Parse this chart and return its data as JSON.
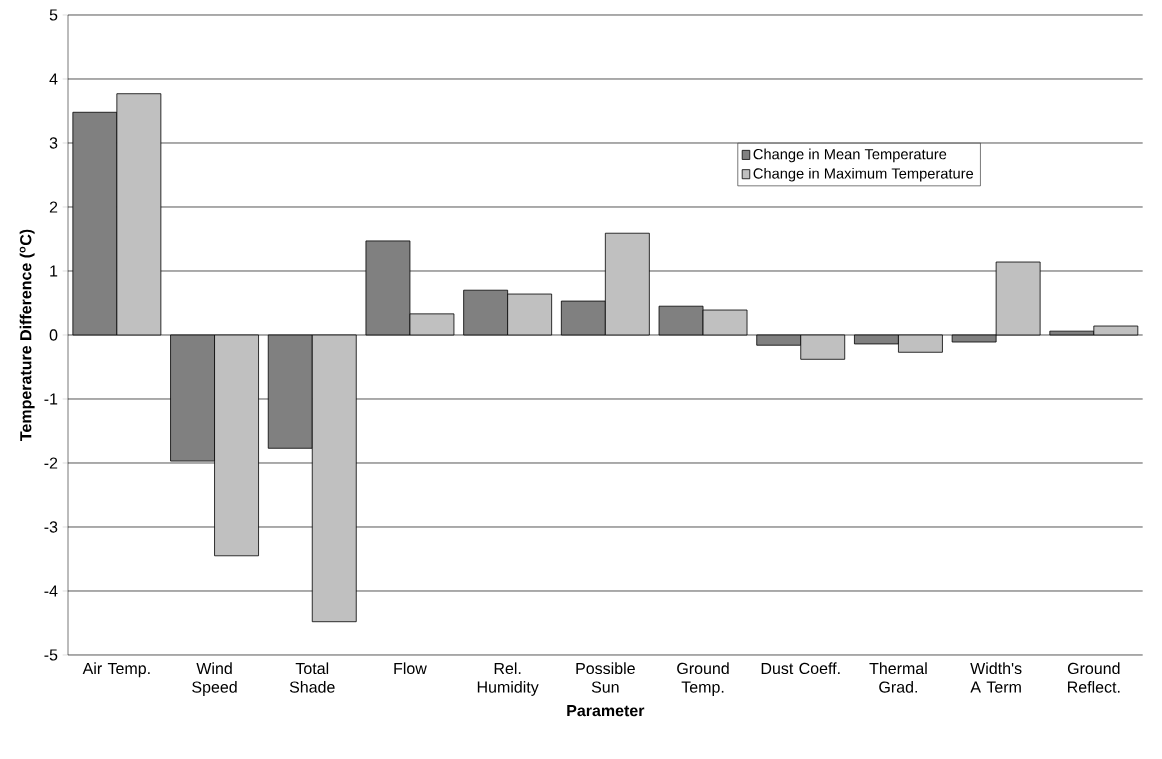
{
  "chart_data": {
    "type": "bar",
    "xlabel": "Parameter",
    "ylabel": "Temperature Difference ($^{o}$C)",
    "categories": [
      "Air Temp.",
      "Wind Speed",
      "Total Shade",
      "Flow",
      "Rel. Humidity",
      "Possible Sun",
      "Ground Temp.",
      "Dust Coeff.",
      "Thermal Grad.",
      "Width's A Term",
      "Ground Reflect."
    ],
    "series": [
      {
        "name": "Change in Mean Temperature",
        "color": "#808080",
        "values": [
          3.48,
          -1.97,
          -1.77,
          1.47,
          0.7,
          0.53,
          0.45,
          -0.16,
          -0.14,
          -0.11,
          0.06
        ]
      },
      {
        "name": "Change in Maximum Temperature",
        "color": "#c0c0c0",
        "values": [
          3.77,
          -3.45,
          -4.48,
          0.33,
          0.64,
          1.59,
          0.39,
          -0.38,
          -0.27,
          1.14,
          0.14
        ]
      }
    ],
    "ylim": [
      -5,
      5
    ],
    "yticks": [
      -5,
      -4,
      -3,
      -2,
      -1,
      0,
      1,
      2,
      3,
      4,
      5
    ],
    "grid": "y",
    "legend": "top right"
  }
}
